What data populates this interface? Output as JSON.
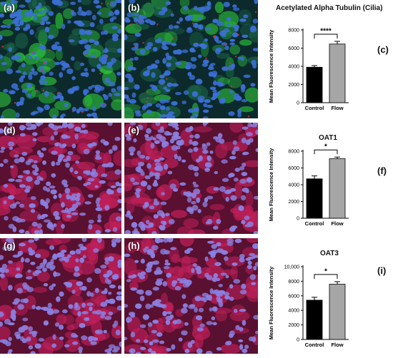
{
  "panels": [
    {
      "label": "(a)",
      "stain": "green"
    },
    {
      "label": "(b)",
      "stain": "green"
    },
    {
      "label": "(d)",
      "stain": "red"
    },
    {
      "label": "(e)",
      "stain": "red"
    },
    {
      "label": "(g)",
      "stain": "red"
    },
    {
      "label": "(h)",
      "stain": "red"
    }
  ],
  "colors": {
    "control_bar": "#000000",
    "flow_bar": "#a6a6a6",
    "cilia_stain": "#2ec83a",
    "nuclei_stain": "#3b6fd6",
    "membrane_stain": "#c0205a"
  },
  "chart_data": [
    {
      "type": "bar",
      "title": "Acetylated Alpha Tubulin (Cilia)",
      "panel_label": "(c)",
      "categories": [
        "Control",
        "Flow"
      ],
      "values": [
        3900,
        6450
      ],
      "errors": [
        180,
        300
      ],
      "ylabel": "Mean Fluorescence Intensity",
      "xlabel": "",
      "ylim": [
        0,
        8000
      ],
      "yticks": [
        "0",
        "2000",
        "4000",
        "6000",
        "8000"
      ],
      "ytick_values": [
        0,
        2000,
        4000,
        6000,
        8000
      ],
      "significance": "****"
    },
    {
      "type": "bar",
      "title": "OAT1",
      "panel_label": "(f)",
      "categories": [
        "Control",
        "Flow"
      ],
      "values": [
        4700,
        7100
      ],
      "errors": [
        350,
        200
      ],
      "ylabel": "Mean Fluorescence Intensity",
      "xlabel": "",
      "ylim": [
        0,
        8000
      ],
      "yticks": [
        "0",
        "2000",
        "4000",
        "6000",
        "8000"
      ],
      "ytick_values": [
        0,
        2000,
        4000,
        6000,
        8000
      ],
      "significance": "*"
    },
    {
      "type": "bar",
      "title": "OAT3",
      "panel_label": "(i)",
      "categories": [
        "Control",
        "Flow"
      ],
      "values": [
        5400,
        7600
      ],
      "errors": [
        400,
        350
      ],
      "ylabel": "Mean Fluorescence Intensity",
      "xlabel": "",
      "ylim": [
        0,
        10000
      ],
      "yticks": [
        "0",
        "2000",
        "4000",
        "6000",
        "8000",
        "10,000"
      ],
      "ytick_values": [
        0,
        2000,
        4000,
        6000,
        8000,
        10000
      ],
      "significance": "*"
    }
  ]
}
